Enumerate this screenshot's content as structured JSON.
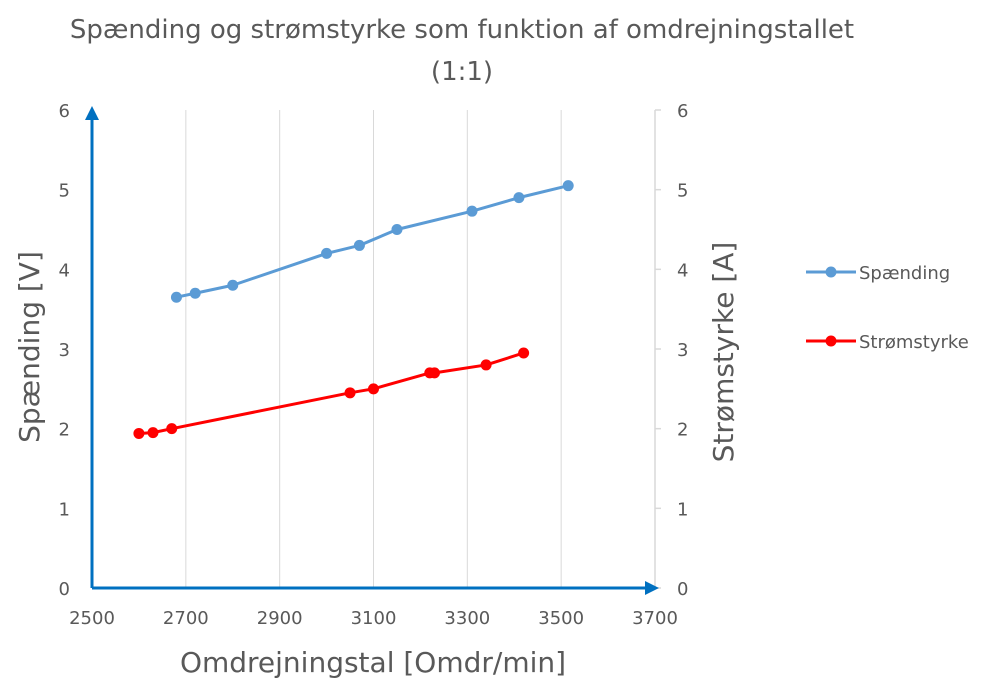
{
  "chart_data": {
    "type": "line",
    "title_line1": "Spænding og strømstyrke som funktion af omdrejningstallet",
    "title_line2": "(1:1)",
    "xlabel": "Omdrejningstal [Omdr/min]",
    "ylabel": "Spænding [V]",
    "y2label": "Strømstyrke [A]",
    "xlim": [
      2500,
      3700
    ],
    "ylim": [
      0,
      6
    ],
    "y2lim": [
      0,
      6
    ],
    "xticks": [
      "2500",
      "2700",
      "2900",
      "3100",
      "3300",
      "3500",
      "3700"
    ],
    "yticks": [
      "0",
      "1",
      "2",
      "3",
      "4",
      "5",
      "6"
    ],
    "y2ticks": [
      "0",
      "1",
      "2",
      "3",
      "4",
      "5",
      "6"
    ],
    "grid": "vertical",
    "legend_position": "right",
    "series": [
      {
        "name": "Spænding",
        "color": "#5B9BD5",
        "axis": "left",
        "x": [
          2680,
          2720,
          2800,
          3000,
          3070,
          3150,
          3310,
          3410,
          3515
        ],
        "y": [
          3.65,
          3.7,
          3.8,
          4.2,
          4.3,
          4.5,
          4.73,
          4.9,
          5.05
        ]
      },
      {
        "name": "Strømstyrke",
        "color": "#FF0000",
        "axis": "right",
        "x": [
          2600,
          2630,
          2670,
          3050,
          3100,
          3220,
          3230,
          3340,
          3420
        ],
        "y": [
          1.94,
          1.95,
          2.0,
          2.45,
          2.5,
          2.7,
          2.7,
          2.8,
          2.95
        ]
      }
    ]
  },
  "colors": {
    "axis_left": "#0070C0",
    "axis_bottom": "#0070C0",
    "axis_right": "#D9D9D9",
    "grid": "#D9D9D9",
    "text": "#595959"
  }
}
